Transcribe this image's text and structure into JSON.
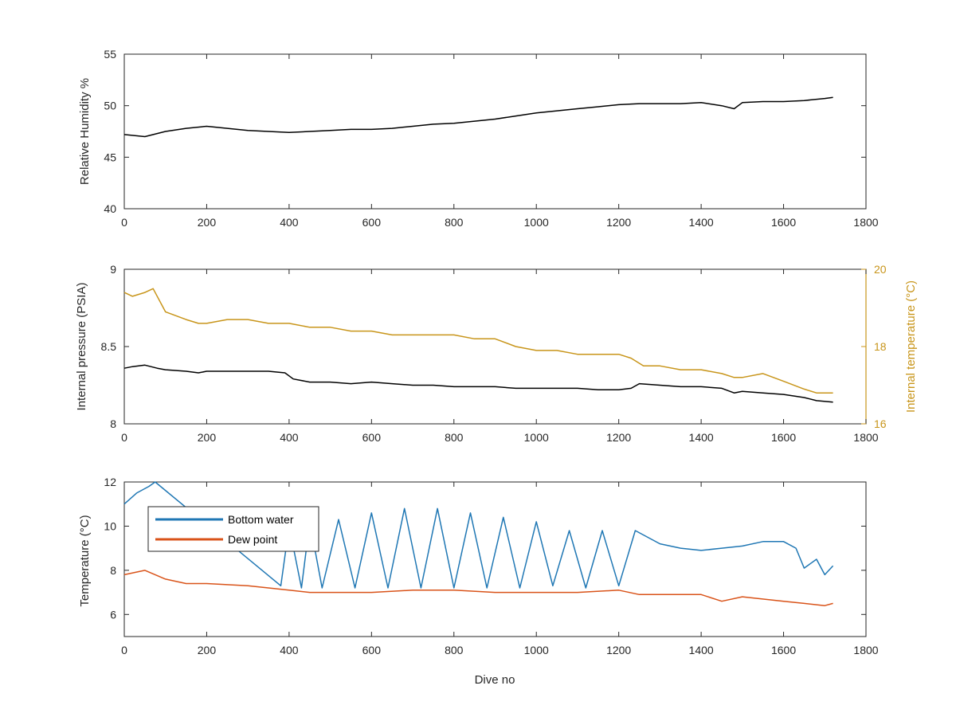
{
  "colors": {
    "humidity": "#000000",
    "pressure": "#000000",
    "internal_temp": "#c8951a",
    "bottom_water": "#1f77b4",
    "dew_point": "#d95319",
    "axis": "#262626"
  },
  "chart_data": [
    {
      "type": "line",
      "ylabel": "Relative Humidity %",
      "xlim": [
        0,
        1800
      ],
      "ylim": [
        40,
        55
      ],
      "xticks": [
        "0",
        "200",
        "400",
        "600",
        "800",
        "1000",
        "1200",
        "1400",
        "1600",
        "1800"
      ],
      "yticks": [
        "40",
        "45",
        "50",
        "55"
      ],
      "series": [
        {
          "x": [
            0,
            50,
            100,
            150,
            200,
            250,
            300,
            350,
            400,
            450,
            500,
            550,
            600,
            650,
            700,
            750,
            800,
            850,
            900,
            950,
            1000,
            1050,
            1100,
            1150,
            1200,
            1250,
            1300,
            1350,
            1400,
            1450,
            1480,
            1500,
            1550,
            1600,
            1650,
            1700,
            1720
          ],
          "y": [
            47.2,
            47.0,
            47.5,
            47.8,
            48.0,
            47.8,
            47.6,
            47.5,
            47.4,
            47.5,
            47.6,
            47.7,
            47.7,
            47.8,
            48.0,
            48.2,
            48.3,
            48.5,
            48.7,
            49.0,
            49.3,
            49.5,
            49.7,
            49.9,
            50.1,
            50.2,
            50.2,
            50.2,
            50.3,
            50.0,
            49.7,
            50.3,
            50.4,
            50.4,
            50.5,
            50.7,
            50.8
          ]
        }
      ]
    },
    {
      "type": "line",
      "xlim": [
        0,
        1800
      ],
      "ylabel": "Internal pressure (PSIA)",
      "ylim": [
        8,
        9
      ],
      "yticks": [
        "8",
        "8.5",
        "9"
      ],
      "y2label": "Internal temperature (°C)",
      "y2lim": [
        16,
        20
      ],
      "y2ticks": [
        "16",
        "18",
        "20"
      ],
      "xticks": [
        "0",
        "200",
        "400",
        "600",
        "800",
        "1000",
        "1200",
        "1400",
        "1600",
        "1800"
      ],
      "series": [
        {
          "axis": "left",
          "x": [
            0,
            20,
            50,
            80,
            100,
            150,
            180,
            200,
            250,
            300,
            350,
            390,
            410,
            450,
            500,
            550,
            600,
            650,
            700,
            750,
            800,
            850,
            900,
            950,
            1000,
            1050,
            1100,
            1150,
            1200,
            1230,
            1250,
            1300,
            1350,
            1400,
            1450,
            1480,
            1500,
            1550,
            1600,
            1650,
            1680,
            1720
          ],
          "y": [
            8.36,
            8.37,
            8.38,
            8.36,
            8.35,
            8.34,
            8.33,
            8.34,
            8.34,
            8.34,
            8.34,
            8.33,
            8.29,
            8.27,
            8.27,
            8.26,
            8.27,
            8.26,
            8.25,
            8.25,
            8.24,
            8.24,
            8.24,
            8.23,
            8.23,
            8.23,
            8.23,
            8.22,
            8.22,
            8.23,
            8.26,
            8.25,
            8.24,
            8.24,
            8.23,
            8.2,
            8.21,
            8.2,
            8.19,
            8.17,
            8.15,
            8.14
          ]
        },
        {
          "axis": "right",
          "x": [
            0,
            20,
            50,
            70,
            100,
            150,
            180,
            200,
            250,
            300,
            350,
            400,
            450,
            500,
            550,
            600,
            650,
            700,
            750,
            800,
            850,
            900,
            950,
            1000,
            1050,
            1100,
            1150,
            1200,
            1230,
            1260,
            1300,
            1350,
            1400,
            1450,
            1480,
            1500,
            1550,
            1600,
            1650,
            1680,
            1720
          ],
          "y": [
            19.4,
            19.3,
            19.4,
            19.5,
            18.9,
            18.7,
            18.6,
            18.6,
            18.7,
            18.7,
            18.6,
            18.6,
            18.5,
            18.5,
            18.4,
            18.4,
            18.3,
            18.3,
            18.3,
            18.3,
            18.2,
            18.2,
            18.0,
            17.9,
            17.9,
            17.8,
            17.8,
            17.8,
            17.7,
            17.5,
            17.5,
            17.4,
            17.4,
            17.3,
            17.2,
            17.2,
            17.3,
            17.1,
            16.9,
            16.8,
            16.8
          ]
        }
      ]
    },
    {
      "type": "line",
      "xlabel": "Dive no",
      "ylabel": "Temperature (°C)",
      "xlim": [
        0,
        1800
      ],
      "ylim": [
        5,
        12
      ],
      "xticks": [
        "0",
        "200",
        "400",
        "600",
        "800",
        "1000",
        "1200",
        "1400",
        "1600",
        "1800"
      ],
      "yticks": [
        "6",
        "8",
        "10",
        "12"
      ],
      "legend": "top-left",
      "series": [
        {
          "name": "Bottom water",
          "x": [
            0,
            30,
            60,
            75,
            380,
            400,
            430,
            450,
            480,
            520,
            560,
            600,
            640,
            680,
            720,
            760,
            800,
            840,
            880,
            920,
            960,
            1000,
            1040,
            1080,
            1120,
            1160,
            1200,
            1240,
            1300,
            1350,
            1400,
            1450,
            1500,
            1550,
            1600,
            1630,
            1650,
            1680,
            1700,
            1720
          ],
          "y": [
            11.0,
            11.5,
            11.8,
            12.0,
            7.3,
            10.0,
            7.2,
            10.2,
            7.2,
            10.3,
            7.2,
            10.6,
            7.2,
            10.8,
            7.2,
            10.8,
            7.2,
            10.6,
            7.2,
            10.4,
            7.2,
            10.2,
            7.3,
            9.8,
            7.2,
            9.8,
            7.3,
            9.8,
            9.2,
            9.0,
            8.9,
            9.0,
            9.1,
            9.3,
            9.3,
            9.0,
            8.1,
            8.5,
            7.8,
            8.2
          ]
        },
        {
          "name": "Dew point",
          "x": [
            0,
            50,
            100,
            150,
            200,
            300,
            400,
            450,
            500,
            600,
            700,
            800,
            900,
            1000,
            1100,
            1200,
            1250,
            1300,
            1400,
            1450,
            1500,
            1600,
            1650,
            1700,
            1720
          ],
          "y": [
            7.8,
            8.0,
            7.6,
            7.4,
            7.4,
            7.3,
            7.1,
            7.0,
            7.0,
            7.0,
            7.1,
            7.1,
            7.0,
            7.0,
            7.0,
            7.1,
            6.9,
            6.9,
            6.9,
            6.6,
            6.8,
            6.6,
            6.5,
            6.4,
            6.5
          ]
        }
      ]
    }
  ]
}
